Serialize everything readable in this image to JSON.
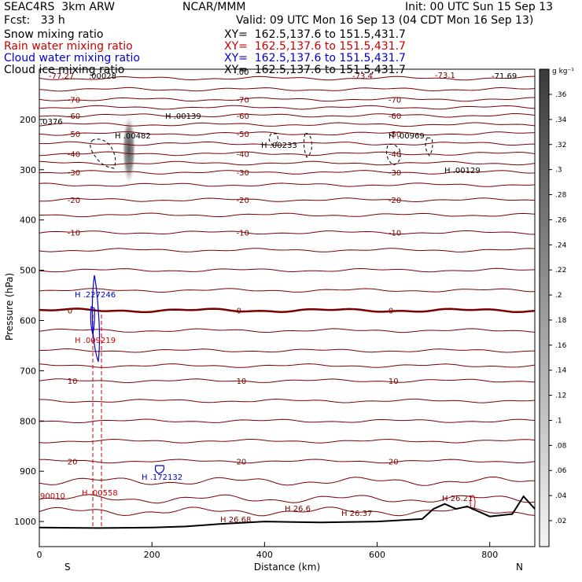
{
  "header": {
    "model": "SEAC4RS  3km ARW",
    "org": "NCAR/MMM",
    "init": "Init: 00 UTC Sun 15 Sep 13",
    "fcst": "Fcst:   33 h",
    "valid": "Valid: 09 UTC Mon 16 Sep 13 (04 CDT Mon 16 Sep 13)"
  },
  "legend": [
    {
      "label": "Snow mixing ratio",
      "xy": "XY=  162.5,137.6 to 151.5,431.7",
      "color": "#000000"
    },
    {
      "label": "Rain water mixing ratio",
      "xy": "XY=  162.5,137.6 to 151.5,431.7",
      "color": "#cc0000"
    },
    {
      "label": "Cloud water mixing ratio",
      "xy": "XY=  162.5,137.6 to 151.5,431.7",
      "color": "#0000cc"
    },
    {
      "label": "Cloud ice mixing ratio",
      "xy": "XY=  162.5,137.6 to 151.5,431.7",
      "color": "#000000"
    }
  ],
  "chart_data": {
    "type": "cross-section",
    "xlabel": "Distance (km)",
    "ylabel": "Pressure (hPa)",
    "xlim": [
      0,
      880
    ],
    "ylim": [
      1050,
      100
    ],
    "x_ticks": [
      "0",
      "200",
      "400",
      "600",
      "800"
    ],
    "y_ticks": [
      "200",
      "300",
      "400",
      "500",
      "600",
      "700",
      "800",
      "900",
      "1000"
    ],
    "x_tick_values": [
      0,
      200,
      400,
      600,
      800
    ],
    "y_tick_values": [
      200,
      300,
      400,
      500,
      600,
      700,
      800,
      900,
      1000
    ],
    "endpoints": {
      "left": "S",
      "right": "N"
    },
    "colorbar": {
      "unit": "g kg⁻¹",
      "labels": [
        ".36",
        ".34",
        ".32",
        ".3",
        ".28",
        ".26",
        ".24",
        ".22",
        ".2",
        ".18",
        ".16",
        ".14",
        ".12",
        ".1",
        ".08",
        ".06",
        ".04",
        ".02"
      ],
      "values": [
        0.36,
        0.34,
        0.32,
        0.3,
        0.28,
        0.26,
        0.24,
        0.22,
        0.2,
        0.18,
        0.16,
        0.14,
        0.12,
        0.1,
        0.08,
        0.06,
        0.04,
        0.02
      ]
    },
    "temperature_isotherms": [
      {
        "label": "-70",
        "pressure": 160
      },
      {
        "label": "-60",
        "pressure": 192
      },
      {
        "label": "-50",
        "pressure": 228
      },
      {
        "label": "-40",
        "pressure": 268
      },
      {
        "label": "-30",
        "pressure": 305
      },
      {
        "label": "-20",
        "pressure": 360
      },
      {
        "label": "-10",
        "pressure": 425
      },
      {
        "label": "0",
        "pressure": 580
      },
      {
        "label": "10",
        "pressure": 720
      },
      {
        "label": "20",
        "pressure": 880
      }
    ],
    "terrain_pressure_x": [
      0,
      100,
      200,
      260,
      320,
      400,
      500,
      600,
      680,
      700,
      720,
      740,
      760,
      800,
      840,
      860,
      880
    ],
    "terrain_pressure_y": [
      1012,
      1013,
      1012,
      1010,
      1005,
      1000,
      1002,
      1000,
      995,
      975,
      965,
      975,
      970,
      990,
      985,
      950,
      975
    ],
    "annotations": {
      "top_labels": [
        "-77.27",
        ".00028",
        "-73.4",
        "-73.1",
        "-71.69",
        "-.00"
      ],
      "upper_maxima": [
        ".0376",
        "H .00139",
        "H .00482",
        "H .00233",
        "H .00969",
        "H .00129"
      ],
      "cloud_water": [
        "H .227246",
        "H .172132"
      ],
      "rain_water": [
        "H .009219",
        "H .00558",
        "90010"
      ],
      "surface_temps": [
        "H 26.68",
        "H 26.6",
        "H 26.37",
        "H 26.21"
      ]
    }
  }
}
